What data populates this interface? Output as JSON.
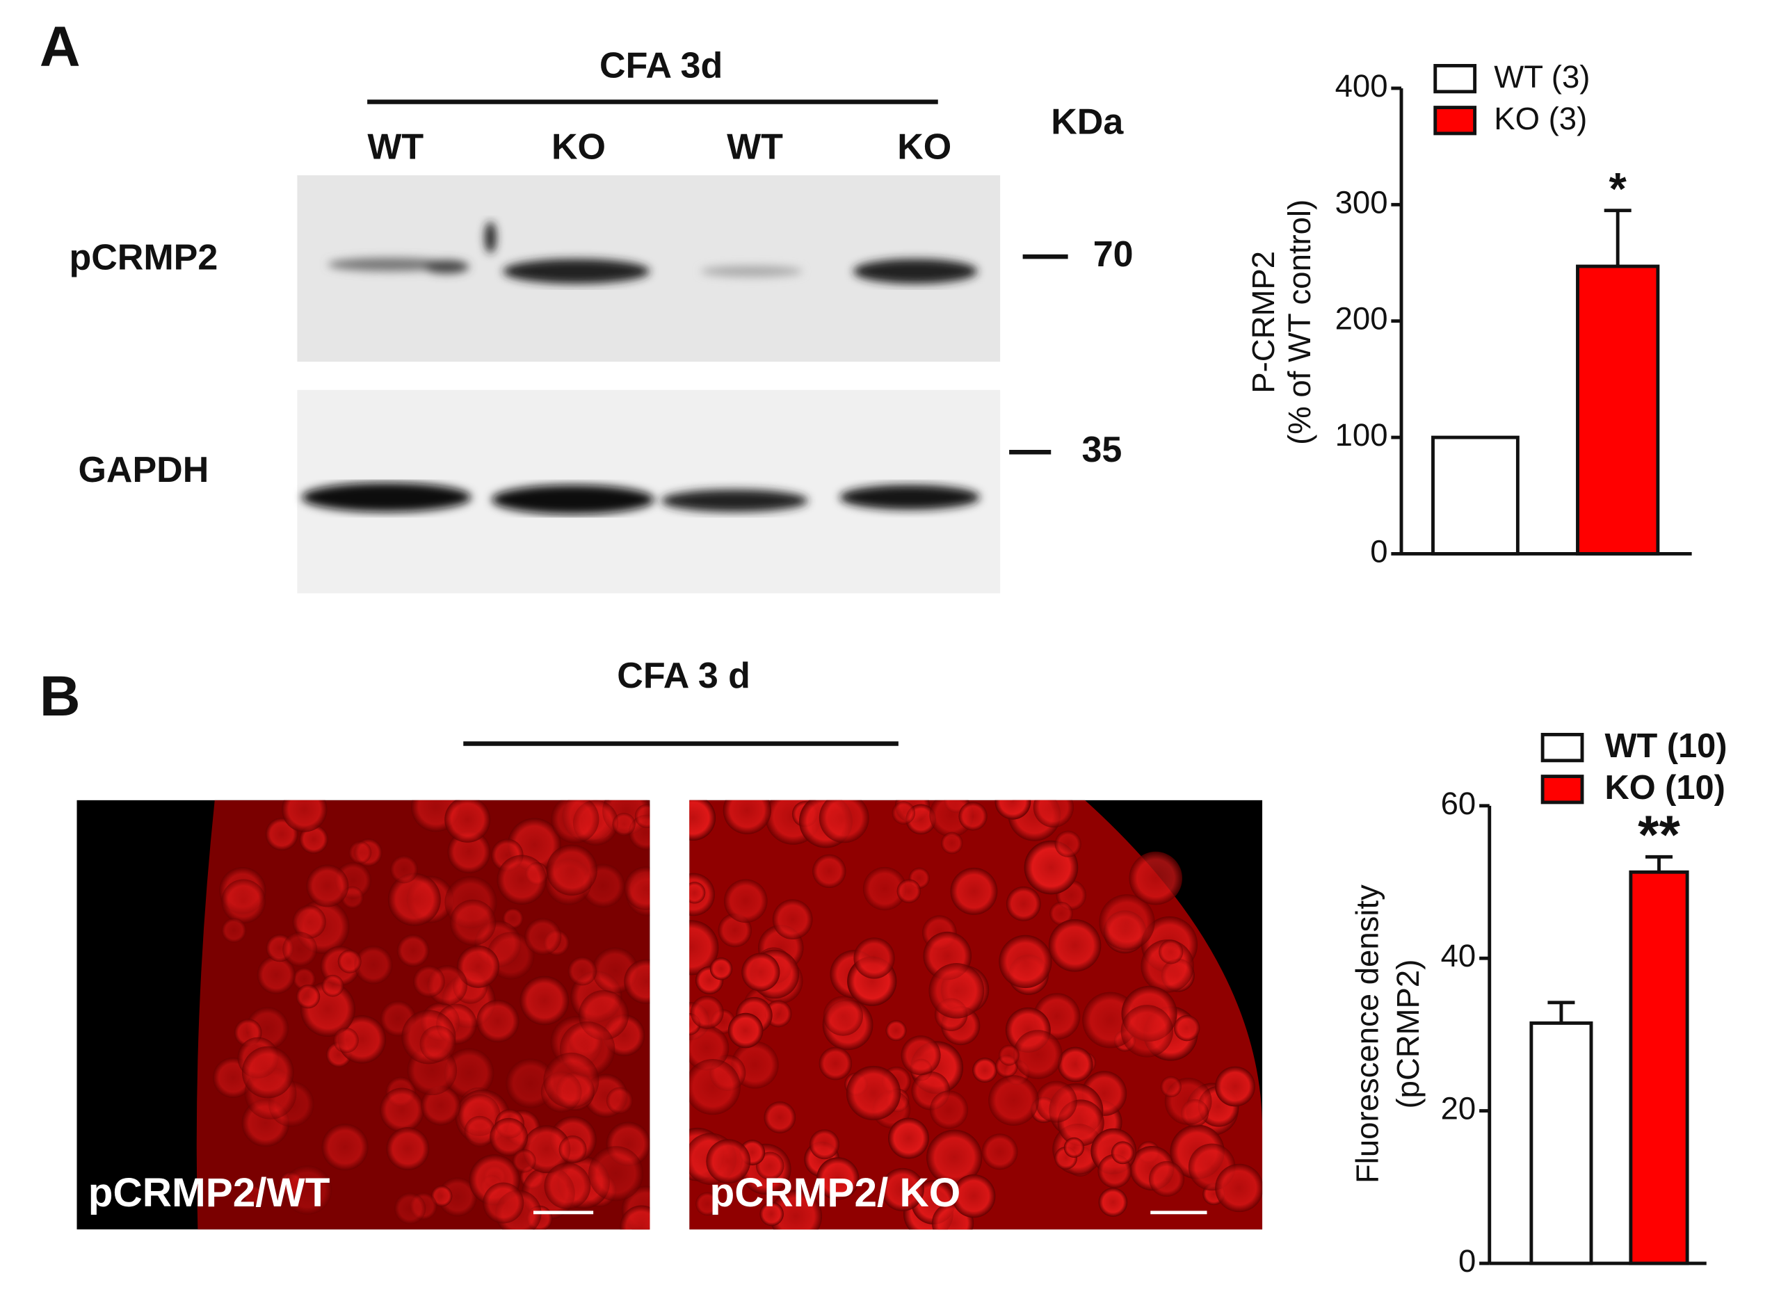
{
  "panels": {
    "a": "A",
    "b": "B"
  },
  "blot": {
    "condition": "CFA 3d",
    "lanes": [
      "WT",
      "KO",
      "WT",
      "KO"
    ],
    "unit": "KDa",
    "rows": [
      {
        "label": "pCRMP2",
        "marker": "70"
      },
      {
        "label": "GAPDH",
        "marker": "35"
      }
    ]
  },
  "images": {
    "condition": "CFA 3 d",
    "captions": [
      "pCRMP2/WT",
      "pCRMP2/ KO"
    ]
  },
  "chart_data": [
    {
      "type": "bar",
      "ylabel": [
        "P-CRMP2",
        "(% of WT control)"
      ],
      "categories": [
        null,
        null
      ],
      "series": [
        {
          "name": "WT (3)",
          "color": "#ffffff",
          "values": [
            100,
            null
          ],
          "errors": [
            0,
            null
          ]
        },
        {
          "name": "KO (3)",
          "color": "#ff0000",
          "values": [
            null,
            247
          ],
          "errors": [
            null,
            48
          ]
        }
      ],
      "annotations": [
        "*"
      ],
      "ylim": [
        0,
        400
      ],
      "yticks": [
        0,
        100,
        200,
        300,
        400
      ]
    },
    {
      "type": "bar",
      "ylabel": [
        "Fluorescence density",
        "(pCRMP2)"
      ],
      "categories": [
        null,
        null
      ],
      "series": [
        {
          "name": "WT (10)",
          "color": "#ffffff",
          "values": [
            31.5,
            null
          ],
          "errors": [
            2.7,
            null
          ]
        },
        {
          "name": "KO (10)",
          "color": "#ff0000",
          "values": [
            null,
            51.3
          ],
          "errors": [
            null,
            2
          ]
        }
      ],
      "annotations": [
        "**"
      ],
      "ylim": [
        0,
        60
      ],
      "yticks": [
        0,
        20,
        40,
        60
      ]
    }
  ]
}
